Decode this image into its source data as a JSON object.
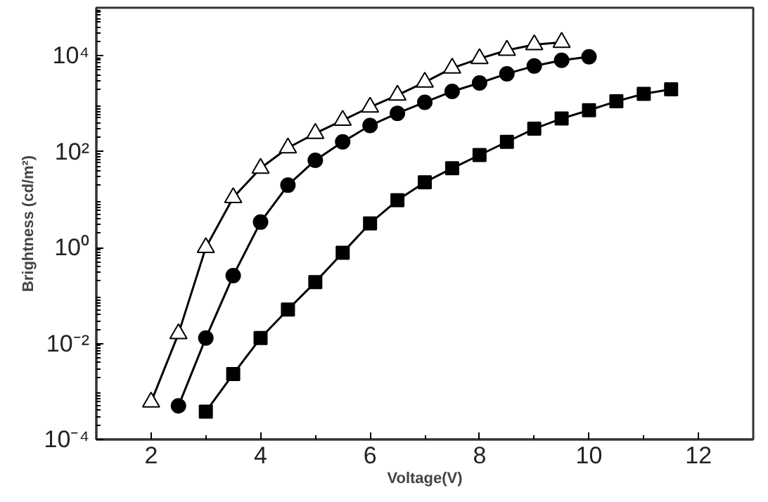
{
  "chart_data": {
    "type": "line",
    "xlabel": "Voltage(V)",
    "ylabel": "Brightness (cd/m²)",
    "log": "y",
    "grid": false,
    "line_style": "solid",
    "xlim": [
      1,
      13
    ],
    "xticks": [
      2,
      4,
      6,
      8,
      10,
      12
    ],
    "ylim": [
      0.0001,
      100000
    ],
    "yticks": [
      {
        "value": 0.0001,
        "label": "10⁻⁴"
      },
      {
        "value": 0.01,
        "label": "10⁻²"
      },
      {
        "value": 1,
        "label": "10⁰"
      },
      {
        "value": 100,
        "label": "10²"
      },
      {
        "value": 10000,
        "label": "10⁴"
      }
    ],
    "series": [
      {
        "color": "#000000",
        "marker": "square",
        "x": [
          3,
          3.5,
          4,
          4.5,
          5,
          5.5,
          6,
          6.5,
          7,
          7.5,
          8,
          8.5,
          9,
          9.5,
          10,
          10.5,
          11,
          11.5
        ],
        "values": [
          0.00038,
          0.0023,
          0.013,
          0.051,
          0.19,
          0.78,
          3.2,
          9.7,
          23,
          45,
          85,
          160,
          300,
          490,
          730,
          1120,
          1600,
          2000
        ]
      },
      {
        "color": "#000000",
        "marker": "circle",
        "x": [
          2.5,
          3,
          3.5,
          4,
          4.5,
          5,
          5.5,
          6,
          6.5,
          7,
          7.5,
          8,
          8.5,
          9,
          9.5,
          10
        ],
        "values": [
          0.0005,
          0.013,
          0.26,
          3.4,
          20,
          66,
          160,
          350,
          630,
          1070,
          1800,
          2700,
          4200,
          6100,
          8000,
          9500
        ]
      },
      {
        "color": "#000000",
        "marker": "triangle",
        "x": [
          2,
          2.5,
          3,
          3.5,
          4,
          4.5,
          5,
          5.5,
          6,
          6.5,
          7,
          7.5,
          8,
          8.5,
          9,
          9.5
        ],
        "values": [
          0.0006,
          0.016,
          1,
          11,
          45,
          120,
          240,
          450,
          850,
          1500,
          2800,
          5500,
          8700,
          13000,
          17000,
          19000
        ]
      }
    ]
  }
}
